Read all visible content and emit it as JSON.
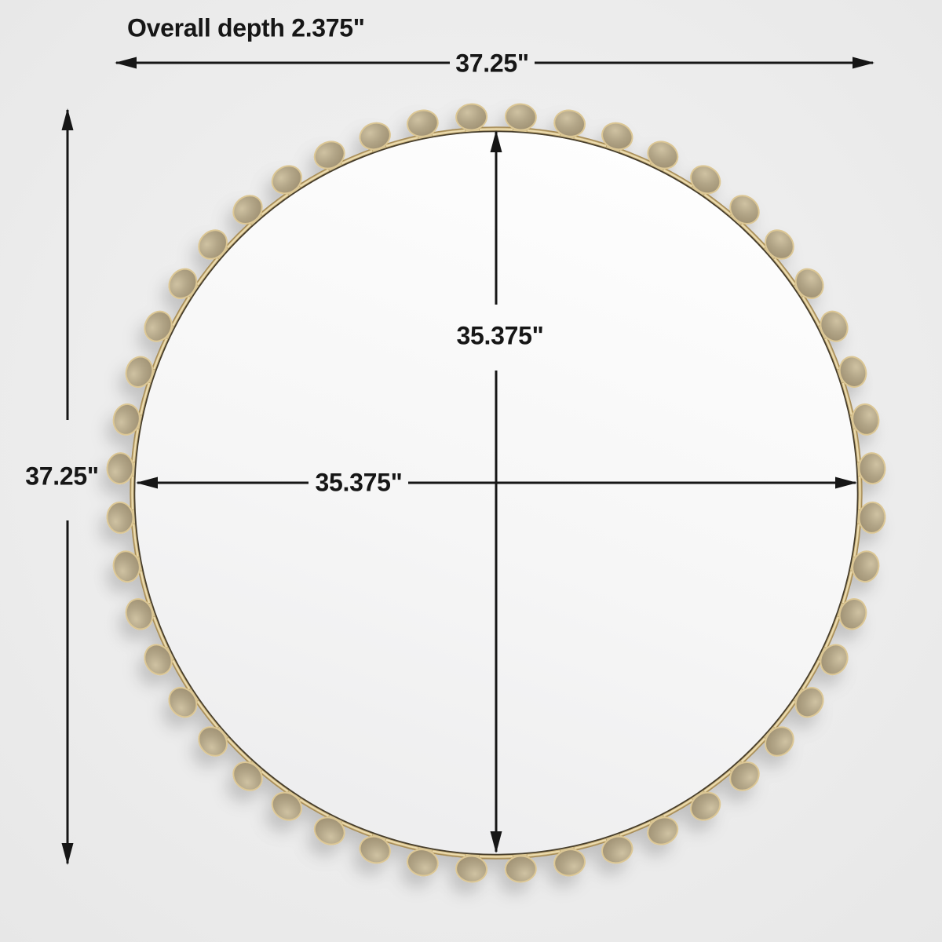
{
  "diagram": {
    "type": "product-dimension-diagram",
    "subject": "round beaded-frame wall mirror, front view",
    "dimensions": {
      "overall_depth_label": "Overall depth 2.375\"",
      "overall_width_label": "37.25\"",
      "overall_height_label": "37.25\"",
      "mirror_height_label": "35.375\"",
      "mirror_width_label": "35.375\""
    },
    "product": {
      "stud_count": 48,
      "colors": {
        "line": "#161616",
        "gold": "#cbb37b",
        "gold_dark": "#a68c58",
        "gold_light": "#ecdcb0",
        "stud_face": "#ab9e82",
        "mirror": "#f7f7f7",
        "background": "#ececec"
      }
    }
  }
}
